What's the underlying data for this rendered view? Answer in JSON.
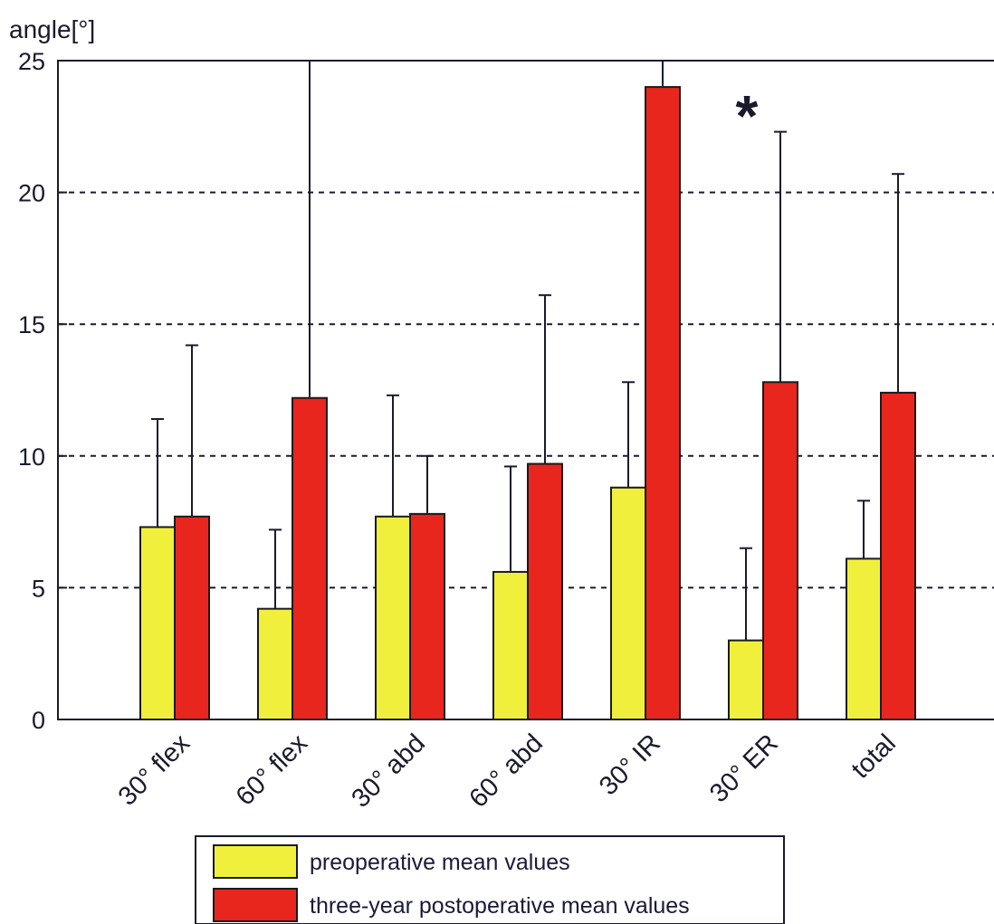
{
  "chart_data": {
    "type": "bar",
    "ylabel": "angle[°]",
    "xlabel": "",
    "title": "",
    "ylim": [
      0,
      25
    ],
    "yticks": [
      0,
      5,
      10,
      15,
      20,
      25
    ],
    "grid": "horizontal-dashed",
    "categories": [
      "30° flex",
      "60° flex",
      "30° abd",
      "60° abd",
      "30° IR",
      "30° ER",
      "total"
    ],
    "series": [
      {
        "name": "preoperative mean values",
        "color": "#f0f03c",
        "values": [
          7.3,
          4.2,
          7.7,
          5.6,
          8.8,
          3.0,
          6.1
        ],
        "error_upper": [
          11.4,
          7.2,
          12.3,
          9.6,
          12.8,
          6.5,
          8.3
        ]
      },
      {
        "name": "three-year postoperative mean values",
        "color": "#e8261e",
        "values": [
          7.7,
          12.2,
          7.8,
          9.7,
          24.0,
          12.8,
          12.4
        ],
        "error_upper": [
          14.2,
          25.0,
          10.0,
          16.1,
          25.0,
          22.3,
          20.7
        ]
      }
    ],
    "annotations": [
      {
        "text": "*",
        "category": "30° ER"
      }
    ],
    "legend": {
      "placement": "bottom-center"
    }
  }
}
